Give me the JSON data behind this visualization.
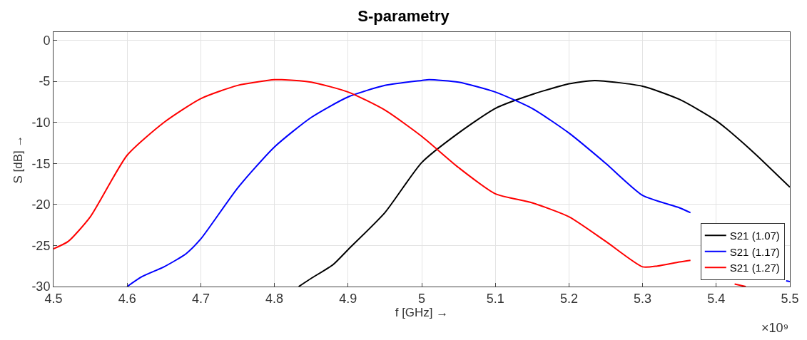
{
  "chart_data": {
    "type": "line",
    "title": "S-parametry",
    "xlabel": "f [GHz] →",
    "ylabel": "S [dB] →",
    "annotations": [
      "×10⁹"
    ],
    "xlim": [
      4.5,
      5.5
    ],
    "xticks": [
      4.5,
      4.6,
      4.7,
      4.8,
      4.9,
      5,
      5.1,
      5.2,
      5.3,
      5.4,
      5.5
    ],
    "ylim": [
      -30,
      1
    ],
    "yticks": [
      -30,
      -25,
      -20,
      -15,
      -10,
      -5,
      0
    ],
    "grid": true,
    "legend": "bottom right",
    "series": [
      {
        "name": "S21 (1.07)",
        "color": "#000000",
        "x": [
          4.833,
          4.85,
          4.88,
          4.9,
          4.95,
          5.0,
          5.05,
          5.1,
          5.15,
          5.2,
          5.235,
          5.3,
          5.35,
          5.4,
          5.45,
          5.5
        ],
        "values": [
          -30,
          -29,
          -27.3,
          -25.5,
          -21,
          -14.9,
          -11.3,
          -8.3,
          -6.6,
          -5.3,
          -4.9,
          -5.6,
          -7.2,
          -9.8,
          -13.6,
          -17.9
        ]
      },
      {
        "name": "S21 (1.17)",
        "color": "#0000ff",
        "x": [
          4.6,
          4.62,
          4.65,
          4.68,
          4.7,
          4.75,
          4.8,
          4.85,
          4.9,
          4.95,
          5.0,
          5.01,
          5.05,
          5.1,
          5.15,
          5.2,
          5.25,
          5.3,
          5.35,
          5.365,
          5.42,
          5.495,
          5.5
        ],
        "values": [
          -30,
          -28.8,
          -27.6,
          -26,
          -24.2,
          -18,
          -13,
          -9.4,
          -6.9,
          -5.5,
          -4.9,
          -4.8,
          -5.1,
          -6.3,
          -8.3,
          -11.3,
          -15,
          -18.9,
          -20.4,
          -21,
          null,
          -29.3,
          -29.4
        ]
      },
      {
        "name": "S21 (1.27)",
        "color": "#ff0000",
        "x": [
          4.5,
          4.52,
          4.55,
          4.6,
          4.65,
          4.7,
          4.75,
          4.8,
          4.81,
          4.85,
          4.9,
          4.95,
          5.0,
          5.05,
          5.1,
          5.15,
          5.2,
          5.25,
          5.3,
          5.32,
          5.35,
          5.365,
          5.39,
          5.425,
          5.44
        ],
        "values": [
          -25.4,
          -24.5,
          -21.5,
          -14,
          -10,
          -7.1,
          -5.5,
          -4.8,
          -4.8,
          -5.1,
          -6.3,
          -8.5,
          -11.7,
          -15.5,
          -18.7,
          -19.8,
          -21.5,
          -24.5,
          -27.6,
          -27.5,
          -27,
          -26.8,
          null,
          -29.7,
          -30
        ]
      }
    ]
  }
}
